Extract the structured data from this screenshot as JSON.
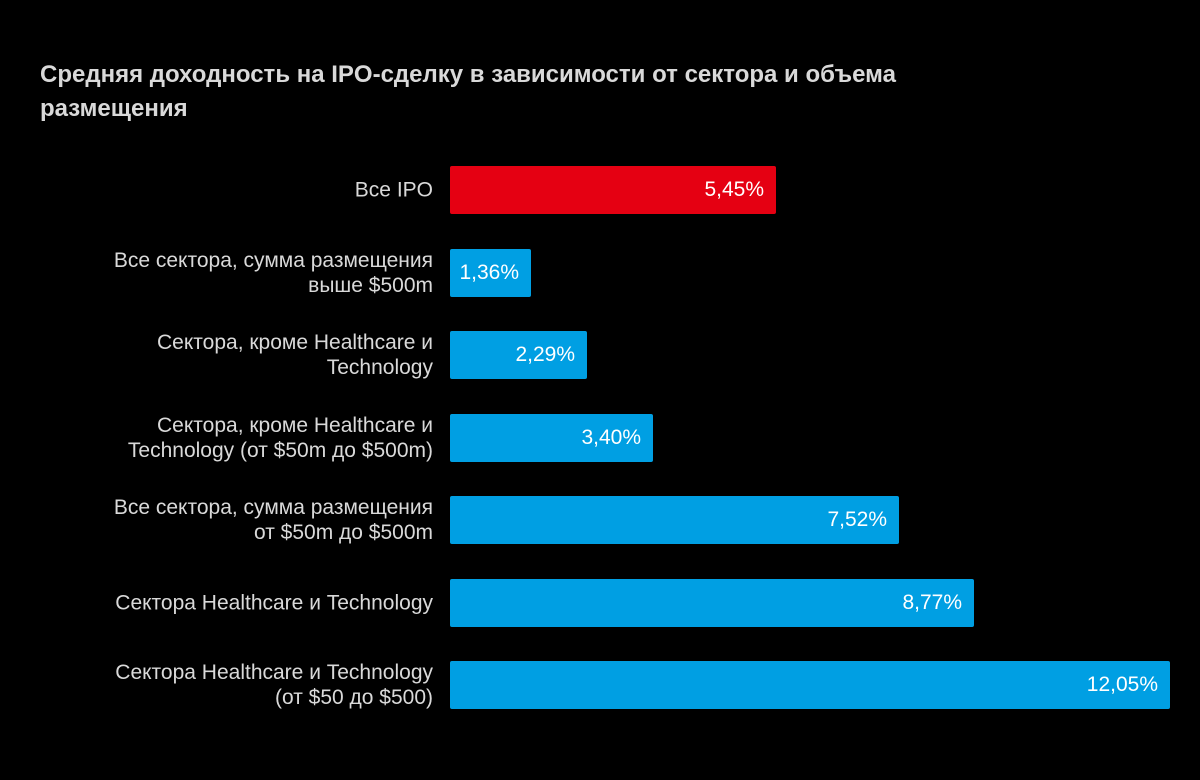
{
  "chart_data": {
    "type": "bar",
    "orientation": "horizontal",
    "title": "Средняя доходность на IPO-сделку в зависимости от сектора и объема размещения",
    "xlabel": "",
    "ylabel": "",
    "xlim": [
      0,
      12.05
    ],
    "grid": false,
    "categories": [
      "Все IPO",
      "Все сектора, сумма размещения выше $500m",
      "Сектора, кроме Healthcare и Technology",
      "Сектора, кроме Healthcare и Technology (от $50m до $500m)",
      "Все сектора, сумма размещения от $50m до $500m",
      "Сектора Healthcare и Technology",
      "Сектора Healthcare и Technology (от $50 до $500)"
    ],
    "values": [
      5.45,
      1.36,
      2.29,
      3.4,
      7.52,
      8.77,
      12.05
    ],
    "data_labels": [
      "5,45%",
      "1,36%",
      "2,29%",
      "3,40%",
      "7,52%",
      "8,77%",
      "12,05%"
    ],
    "colors": [
      "#e50012",
      "#009fe3",
      "#009fe3",
      "#009fe3",
      "#009fe3",
      "#009fe3",
      "#009fe3"
    ]
  }
}
